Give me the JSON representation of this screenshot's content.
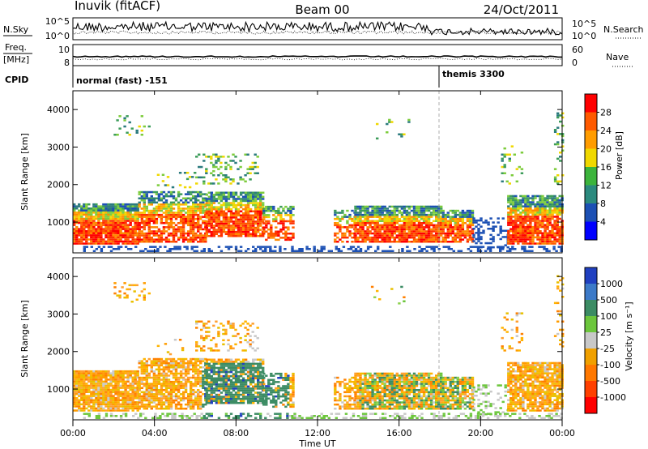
{
  "header": {
    "site": "Inuvik (fitACF)",
    "beam": "Beam 00",
    "date": "24/Oct/2011"
  },
  "nsky_panel": {
    "left_label": "N.Sky",
    "right_label": "N.Search",
    "left_ticks": [
      "10^5",
      "10^0"
    ],
    "right_ticks": [
      "10^5",
      "10^0"
    ]
  },
  "freq_panel": {
    "left_label_top": "Freq.",
    "left_label_bottom": "[MHz]",
    "right_label": "Nave",
    "left_ticks": [
      "10",
      "8"
    ],
    "right_ticks": [
      "60",
      "0"
    ]
  },
  "cpid_panel": {
    "label": "CPID",
    "segments": [
      "normal (fast) -151",
      "themis 3300"
    ]
  },
  "chart_data": [
    {
      "type": "heatmap",
      "ylabel": "Slant Range [km]",
      "y_ticks": [
        "1000",
        "2000",
        "3000",
        "4000"
      ],
      "colorbar_label": "Power [dB]",
      "colorbar_ticks": [
        "28",
        "24",
        "20",
        "16",
        "12",
        "8",
        "4"
      ],
      "colorbar_colors": [
        "#ff0000",
        "#ff5a00",
        "#ff9c00",
        "#f0d800",
        "#3cb43c",
        "#2b8a7e",
        "#1c50b4",
        "#0000ff"
      ],
      "xlim": [
        "00:00",
        "24:00"
      ],
      "ylim": [
        180,
        4500
      ]
    },
    {
      "type": "heatmap",
      "ylabel": "Slant Range [km]",
      "y_ticks": [
        "1000",
        "2000",
        "3000",
        "4000"
      ],
      "colorbar_label": "Velocity [m s⁻¹]",
      "colorbar_ticks": [
        "1000",
        "500",
        "100",
        "25",
        "-25",
        "-100",
        "-500",
        "-1000"
      ],
      "colorbar_colors": [
        "#2040c0",
        "#3c7ac8",
        "#3c8c64",
        "#6cc63c",
        "#c8c8c8",
        "#f0a000",
        "#ff7800",
        "#ff4000",
        "#ff0000"
      ],
      "xlim": [
        "00:00",
        "24:00"
      ],
      "ylim": [
        180,
        4500
      ]
    }
  ],
  "x_axis": {
    "ticks": [
      "00:00",
      "04:00",
      "08:00",
      "12:00",
      "16:00",
      "20:00",
      "00:00"
    ],
    "label": "Time UT"
  }
}
